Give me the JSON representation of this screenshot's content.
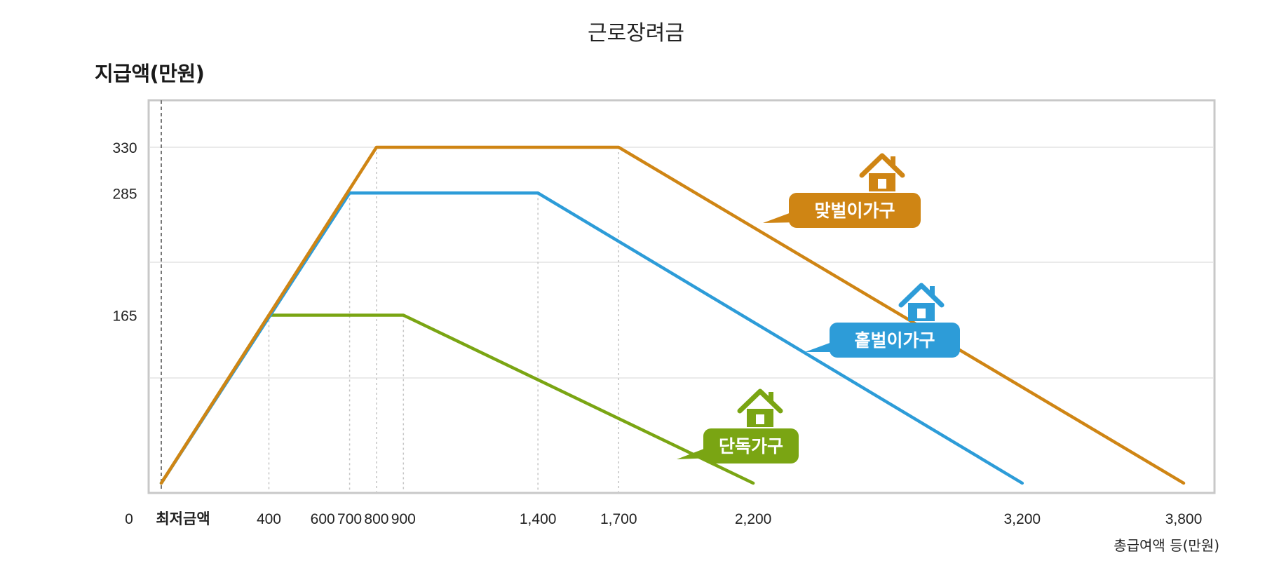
{
  "chart_data": {
    "type": "line",
    "title": "근로장려금",
    "ylabel": "지급액(만원)",
    "xlabel": "총급여액 등(만원)",
    "xlim": [
      0,
      3800
    ],
    "ylim": [
      0,
      330
    ],
    "x_ticks": [
      {
        "value": 400,
        "label": "400"
      },
      {
        "value": 600,
        "label": "600"
      },
      {
        "value": 700,
        "label": "700"
      },
      {
        "value": 800,
        "label": "800"
      },
      {
        "value": 900,
        "label": "900"
      },
      {
        "value": 1400,
        "label": "1,400"
      },
      {
        "value": 1700,
        "label": "1,700"
      },
      {
        "value": 2200,
        "label": "2,200"
      },
      {
        "value": 3200,
        "label": "3,200"
      },
      {
        "value": 3800,
        "label": "3,800"
      }
    ],
    "x_origin_labels": {
      "zero": "0",
      "min": "최저금액"
    },
    "y_ticks": [
      {
        "value": 165,
        "label": "165"
      },
      {
        "value": 285,
        "label": "285"
      },
      {
        "value": 330,
        "label": "330"
      }
    ],
    "grid": true,
    "series": [
      {
        "name": "단독가구",
        "color": "#7aa513",
        "points": [
          [
            0,
            0
          ],
          [
            400,
            165
          ],
          [
            900,
            165
          ],
          [
            2200,
            0
          ]
        ]
      },
      {
        "name": "홑벌이가구",
        "color": "#2d9cd8",
        "points": [
          [
            0,
            0
          ],
          [
            700,
            285
          ],
          [
            1400,
            285
          ],
          [
            3200,
            0
          ]
        ]
      },
      {
        "name": "맞벌이가구",
        "color": "#cf8514",
        "points": [
          [
            0,
            0
          ],
          [
            800,
            330
          ],
          [
            1700,
            330
          ],
          [
            3800,
            0
          ]
        ]
      }
    ]
  }
}
